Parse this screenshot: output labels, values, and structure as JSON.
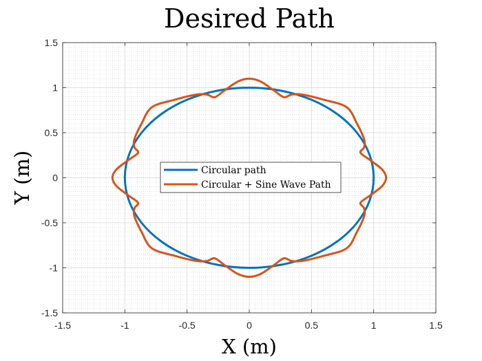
{
  "chart_data": {
    "type": "line",
    "title": "Desired Path",
    "xlabel": "X (m)",
    "ylabel": "Y (m)",
    "xlim": [
      -1.5,
      1.5
    ],
    "ylim": [
      -1.5,
      1.5
    ],
    "xticks": [
      -1.5,
      -1,
      -0.5,
      0,
      0.5,
      1,
      1.5
    ],
    "yticks": [
      -1.5,
      -1,
      -0.5,
      0,
      0.5,
      1,
      1.5
    ],
    "xtick_labels": [
      "-1.5",
      "-1",
      "-0.5",
      "0",
      "0.5",
      "1",
      "1.5"
    ],
    "ytick_labels": [
      "-1.5",
      "-1",
      "-0.5",
      "0",
      "0.5",
      "1",
      "1.5"
    ],
    "grid": true,
    "minor_grid": true,
    "legend_position": "center-left",
    "series": [
      {
        "name": "Circular path",
        "color": "#0072BD",
        "x": [
          1,
          0.9659,
          0.866,
          0.7071,
          0.5,
          0.2588,
          0,
          -0.2588,
          -0.5,
          -0.7071,
          -0.866,
          -0.9659,
          -1,
          -0.9659,
          -0.866,
          -0.7071,
          -0.5,
          -0.2588,
          0,
          0.2588,
          0.5,
          0.7071,
          0.866,
          0.9659,
          1
        ],
        "y": [
          0,
          0.2588,
          0.5,
          0.7071,
          0.866,
          0.9659,
          1,
          0.9659,
          0.866,
          0.7071,
          0.5,
          0.2588,
          0,
          -0.2588,
          -0.5,
          -0.7071,
          -0.866,
          -0.9659,
          -1,
          -0.9659,
          -0.866,
          -0.7071,
          -0.5,
          -0.2588,
          0
        ]
      },
      {
        "name": "Circular + Sine Wave Path",
        "color": "#D95319",
        "x": [
          1.1,
          1.068,
          0.968,
          0.894,
          0.923,
          0.923,
          0.866,
          0.783,
          0.6,
          0.428,
          0.339,
          0.278,
          0.2,
          0.092,
          0,
          -0.092,
          -0.2,
          -0.278,
          -0.339,
          -0.428,
          -0.6,
          -0.783,
          -0.866,
          -0.923,
          -0.923,
          -0.894,
          -0.968,
          -1.068,
          -1.1,
          -1.068,
          -0.968,
          -0.894,
          -0.923,
          -0.923,
          -0.866,
          -0.783,
          -0.6,
          -0.428,
          -0.339,
          -0.278,
          -0.2,
          -0.092,
          0,
          0.092,
          0.2,
          0.278,
          0.339,
          0.428,
          0.6,
          0.783,
          0.866,
          0.923,
          0.923,
          0.894,
          0.968,
          1.068,
          1.1
        ],
        "y": [
          0,
          0.092,
          0.2,
          0.278,
          0.339,
          0.428,
          0.6,
          0.783,
          0.866,
          0.923,
          0.923,
          0.894,
          0.968,
          1.068,
          1.1,
          1.068,
          0.968,
          0.894,
          0.923,
          0.923,
          0.866,
          0.783,
          0.6,
          0.428,
          0.339,
          0.278,
          0.2,
          0.092,
          0,
          -0.092,
          -0.2,
          -0.278,
          -0.339,
          -0.428,
          -0.6,
          -0.783,
          -0.866,
          -0.923,
          -0.923,
          -0.894,
          -0.968,
          -1.068,
          -1.1,
          -1.068,
          -0.968,
          -0.894,
          -0.923,
          -0.923,
          -0.866,
          -0.783,
          -0.6,
          -0.428,
          -0.339,
          -0.278,
          -0.2,
          -0.092,
          0
        ]
      }
    ]
  }
}
